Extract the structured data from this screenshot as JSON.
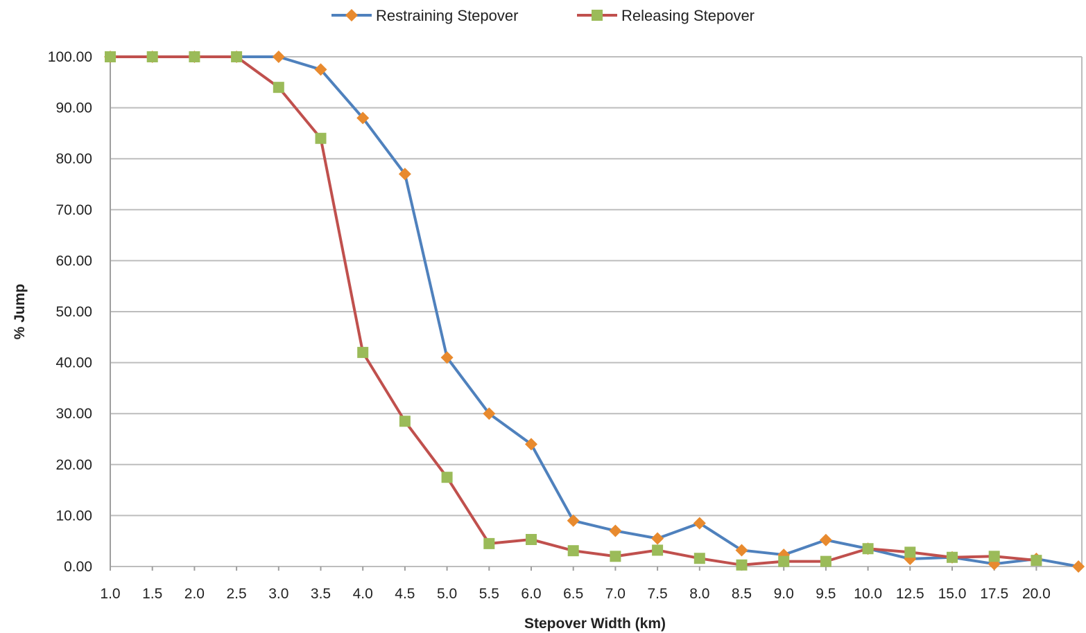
{
  "chart_data": {
    "type": "line",
    "xlabel": "Stepover Width (km)",
    "ylabel": "% Jump",
    "ylim": [
      0,
      100
    ],
    "yticks": [
      "0.00",
      "10.00",
      "20.00",
      "30.00",
      "40.00",
      "50.00",
      "60.00",
      "70.00",
      "80.00",
      "90.00",
      "100.00"
    ],
    "categories": [
      "1.0",
      "1.5",
      "2.0",
      "2.5",
      "3.0",
      "3.5",
      "4.0",
      "4.5",
      "5.0",
      "5.5",
      "6.0",
      "6.5",
      "7.0",
      "7.5",
      "8.0",
      "8.5",
      "9.0",
      "9.5",
      "10.0",
      "12.5",
      "15.0",
      "17.5",
      "20.0",
      ""
    ],
    "grid": true,
    "legend_position": "top-center",
    "series": [
      {
        "name": "Restraining Stepover",
        "line_color": "#4f81bd",
        "marker": "diamond",
        "marker_color": "#e88a2e",
        "values": [
          100,
          100,
          100,
          100,
          100,
          97.5,
          88,
          77,
          41,
          30,
          24,
          9,
          7,
          5.5,
          8.5,
          3.2,
          2.3,
          5.2,
          3.5,
          1.5,
          1.8,
          0.5,
          1.5,
          0
        ]
      },
      {
        "name": "Releasing Stepover",
        "line_color": "#c0504d",
        "marker": "square",
        "marker_color": "#9bbb59",
        "values": [
          100,
          100,
          100,
          100,
          94,
          84,
          42,
          28.5,
          17.5,
          4.5,
          5.3,
          3.1,
          2,
          3.2,
          1.6,
          0.3,
          1,
          1,
          3.5,
          2.8,
          1.8,
          2,
          1.2,
          null
        ]
      }
    ]
  }
}
